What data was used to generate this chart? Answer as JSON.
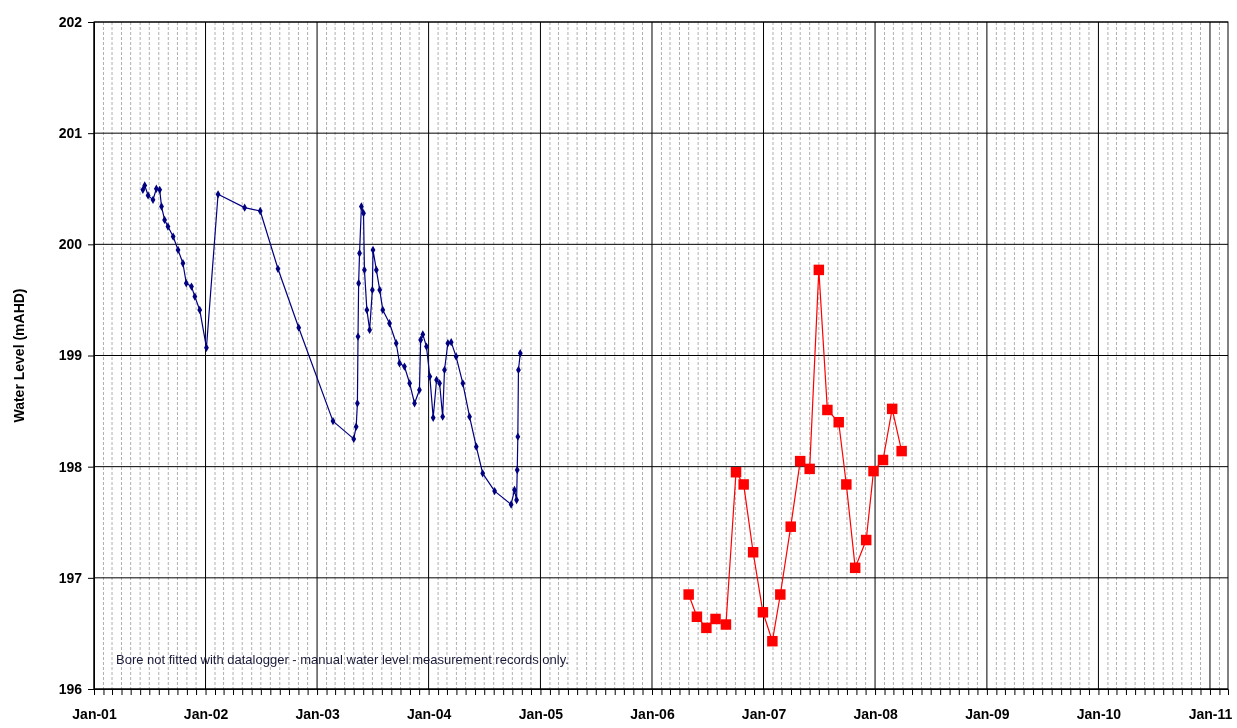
{
  "chart_data": {
    "type": "line",
    "ylabel": "Water Level (mAHD)",
    "xlim": [
      "2001-01-01",
      "2011-03-01"
    ],
    "ylim": [
      196,
      202
    ],
    "grid": true,
    "annotations": [
      "Bore not fitted with datalogger - manual water level measurement records only."
    ],
    "xticks": [
      {
        "value": "2001-01-01",
        "label": "Jan-01"
      },
      {
        "value": "2002-01-01",
        "label": "Jan-02"
      },
      {
        "value": "2003-01-01",
        "label": "Jan-03"
      },
      {
        "value": "2004-01-01",
        "label": "Jan-04"
      },
      {
        "value": "2005-01-01",
        "label": "Jan-05"
      },
      {
        "value": "2006-01-01",
        "label": "Jan-06"
      },
      {
        "value": "2007-01-01",
        "label": "Jan-07"
      },
      {
        "value": "2008-01-01",
        "label": "Jan-08"
      },
      {
        "value": "2009-01-01",
        "label": "Jan-09"
      },
      {
        "value": "2010-01-01",
        "label": "Jan-10"
      },
      {
        "value": "2011-01-01",
        "label": "Jan-11"
      },
      {
        "value": "2001-02-01",
        "label": null
      },
      {
        "value": "2001-03-01",
        "label": null
      },
      {
        "value": "2001-04-01",
        "label": null
      },
      {
        "value": "2001-05-01",
        "label": null
      },
      {
        "value": "2001-06-01",
        "label": null
      },
      {
        "value": "2001-07-01",
        "label": null
      },
      {
        "value": "2001-08-01",
        "label": null
      },
      {
        "value": "2001-09-01",
        "label": null
      },
      {
        "value": "2001-10-01",
        "label": null
      },
      {
        "value": "2001-11-01",
        "label": null
      },
      {
        "value": "2001-12-01",
        "label": null
      },
      {
        "value": "2002-02-01",
        "label": null
      },
      {
        "value": "2002-03-01",
        "label": null
      },
      {
        "value": "2002-04-01",
        "label": null
      },
      {
        "value": "2002-05-01",
        "label": null
      },
      {
        "value": "2002-06-01",
        "label": null
      },
      {
        "value": "2002-07-01",
        "label": null
      },
      {
        "value": "2002-08-01",
        "label": null
      },
      {
        "value": "2002-09-01",
        "label": null
      },
      {
        "value": "2002-10-01",
        "label": null
      },
      {
        "value": "2002-11-01",
        "label": null
      },
      {
        "value": "2002-12-01",
        "label": null
      },
      {
        "value": "2003-02-01",
        "label": null
      },
      {
        "value": "2003-03-01",
        "label": null
      },
      {
        "value": "2003-04-01",
        "label": null
      },
      {
        "value": "2003-05-01",
        "label": null
      },
      {
        "value": "2003-06-01",
        "label": null
      },
      {
        "value": "2003-07-01",
        "label": null
      },
      {
        "value": "2003-08-01",
        "label": null
      },
      {
        "value": "2003-09-01",
        "label": null
      },
      {
        "value": "2003-10-01",
        "label": null
      },
      {
        "value": "2003-11-01",
        "label": null
      },
      {
        "value": "2003-12-01",
        "label": null
      },
      {
        "value": "2004-02-01",
        "label": null
      },
      {
        "value": "2004-03-01",
        "label": null
      },
      {
        "value": "2004-04-01",
        "label": null
      },
      {
        "value": "2004-05-01",
        "label": null
      },
      {
        "value": "2004-06-01",
        "label": null
      },
      {
        "value": "2004-07-01",
        "label": null
      },
      {
        "value": "2004-08-01",
        "label": null
      },
      {
        "value": "2004-09-01",
        "label": null
      },
      {
        "value": "2004-10-01",
        "label": null
      },
      {
        "value": "2004-11-01",
        "label": null
      },
      {
        "value": "2004-12-01",
        "label": null
      },
      {
        "value": "2005-02-01",
        "label": null
      },
      {
        "value": "2005-03-01",
        "label": null
      },
      {
        "value": "2005-04-01",
        "label": null
      },
      {
        "value": "2005-05-01",
        "label": null
      },
      {
        "value": "2005-06-01",
        "label": null
      },
      {
        "value": "2005-07-01",
        "label": null
      },
      {
        "value": "2005-08-01",
        "label": null
      },
      {
        "value": "2005-09-01",
        "label": null
      },
      {
        "value": "2005-10-01",
        "label": null
      },
      {
        "value": "2005-11-01",
        "label": null
      },
      {
        "value": "2005-12-01",
        "label": null
      },
      {
        "value": "2006-02-01",
        "label": null
      },
      {
        "value": "2006-03-01",
        "label": null
      },
      {
        "value": "2006-04-01",
        "label": null
      },
      {
        "value": "2006-05-01",
        "label": null
      },
      {
        "value": "2006-06-01",
        "label": null
      },
      {
        "value": "2006-07-01",
        "label": null
      },
      {
        "value": "2006-08-01",
        "label": null
      },
      {
        "value": "2006-09-01",
        "label": null
      },
      {
        "value": "2006-10-01",
        "label": null
      },
      {
        "value": "2006-11-01",
        "label": null
      },
      {
        "value": "2006-12-01",
        "label": null
      },
      {
        "value": "2007-02-01",
        "label": null
      },
      {
        "value": "2007-03-01",
        "label": null
      },
      {
        "value": "2007-04-01",
        "label": null
      },
      {
        "value": "2007-05-01",
        "label": null
      },
      {
        "value": "2007-06-01",
        "label": null
      },
      {
        "value": "2007-07-01",
        "label": null
      },
      {
        "value": "2007-08-01",
        "label": null
      },
      {
        "value": "2007-09-01",
        "label": null
      },
      {
        "value": "2007-10-01",
        "label": null
      },
      {
        "value": "2007-11-01",
        "label": null
      },
      {
        "value": "2007-12-01",
        "label": null
      },
      {
        "value": "2008-02-01",
        "label": null
      },
      {
        "value": "2008-03-01",
        "label": null
      },
      {
        "value": "2008-04-01",
        "label": null
      },
      {
        "value": "2008-05-01",
        "label": null
      },
      {
        "value": "2008-06-01",
        "label": null
      },
      {
        "value": "2008-07-01",
        "label": null
      },
      {
        "value": "2008-08-01",
        "label": null
      },
      {
        "value": "2008-09-01",
        "label": null
      },
      {
        "value": "2008-10-01",
        "label": null
      },
      {
        "value": "2008-11-01",
        "label": null
      },
      {
        "value": "2008-12-01",
        "label": null
      },
      {
        "value": "2009-02-01",
        "label": null
      },
      {
        "value": "2009-03-01",
        "label": null
      },
      {
        "value": "2009-04-01",
        "label": null
      },
      {
        "value": "2009-05-01",
        "label": null
      },
      {
        "value": "2009-06-01",
        "label": null
      },
      {
        "value": "2009-07-01",
        "label": null
      },
      {
        "value": "2009-08-01",
        "label": null
      },
      {
        "value": "2009-09-01",
        "label": null
      },
      {
        "value": "2009-10-01",
        "label": null
      },
      {
        "value": "2009-11-01",
        "label": null
      },
      {
        "value": "2009-12-01",
        "label": null
      },
      {
        "value": "2010-02-01",
        "label": null
      },
      {
        "value": "2010-03-01",
        "label": null
      },
      {
        "value": "2010-04-01",
        "label": null
      },
      {
        "value": "2010-05-01",
        "label": null
      },
      {
        "value": "2010-06-01",
        "label": null
      },
      {
        "value": "2010-07-01",
        "label": null
      },
      {
        "value": "2010-08-01",
        "label": null
      },
      {
        "value": "2010-09-01",
        "label": null
      },
      {
        "value": "2010-10-01",
        "label": null
      },
      {
        "value": "2010-11-01",
        "label": null
      },
      {
        "value": "2010-12-01",
        "label": null
      },
      {
        "value": "2011-02-01",
        "label": null
      }
    ],
    "yticks": [
      196,
      197,
      198,
      199,
      200,
      201,
      202
    ],
    "series": [
      {
        "color": "#000080",
        "marker": "diamond",
        "x": [
          "2001-06-10",
          "2001-06-16",
          "2001-06-27",
          "2001-07-13",
          "2001-07-24",
          "2001-08-04",
          "2001-08-10",
          "2001-08-20",
          "2001-08-31",
          "2001-09-17",
          "2001-10-03",
          "2001-10-19",
          "2001-10-30",
          "2001-11-16",
          "2001-11-27",
          "2001-12-13",
          "2002-01-04",
          "2002-02-11",
          "2002-05-09",
          "2002-06-29",
          "2002-08-26",
          "2002-11-02",
          "2003-02-22",
          "2003-05-01",
          "2003-05-09",
          "2003-05-13",
          "2003-05-15",
          "2003-05-17",
          "2003-05-20",
          "2003-05-26",
          "2003-06-02",
          "2003-06-05",
          "2003-06-13",
          "2003-06-22",
          "2003-07-01",
          "2003-07-03",
          "2003-07-14",
          "2003-07-25",
          "2003-08-04",
          "2003-08-26",
          "2003-09-17",
          "2003-09-28",
          "2003-10-14",
          "2003-10-31",
          "2003-11-16",
          "2003-12-02",
          "2003-12-06",
          "2003-12-13",
          "2003-12-25",
          "2004-01-05",
          "2004-01-16",
          "2004-01-27",
          "2004-02-06",
          "2004-02-16",
          "2004-02-22",
          "2004-03-04",
          "2004-03-15",
          "2004-03-31",
          "2004-04-22",
          "2004-05-14",
          "2004-06-05",
          "2004-06-26",
          "2004-08-04",
          "2004-09-27",
          "2004-10-08",
          "2004-10-15",
          "2004-10-17",
          "2004-10-19",
          "2004-10-21",
          "2004-10-27"
        ],
        "values": [
          200.49,
          200.53,
          200.44,
          200.4,
          200.5,
          200.49,
          200.34,
          200.22,
          200.16,
          200.07,
          199.95,
          199.83,
          199.65,
          199.62,
          199.53,
          199.41,
          199.07,
          200.45,
          200.33,
          200.3,
          199.78,
          199.25,
          198.41,
          198.25,
          198.36,
          198.57,
          199.17,
          199.65,
          199.92,
          200.34,
          200.28,
          199.77,
          199.41,
          199.23,
          199.59,
          199.95,
          199.77,
          199.59,
          199.41,
          199.29,
          199.11,
          198.93,
          198.9,
          198.75,
          198.57,
          198.69,
          199.14,
          199.19,
          199.08,
          198.81,
          198.44,
          198.78,
          198.75,
          198.45,
          198.87,
          199.11,
          199.12,
          198.99,
          198.75,
          198.45,
          198.18,
          197.94,
          197.78,
          197.66,
          197.79,
          197.7,
          197.97,
          198.27,
          198.87,
          199.02
        ]
      },
      {
        "color": "#ff0000",
        "marker": "square",
        "x": [
          "2006-05-01",
          "2006-05-28",
          "2006-06-28",
          "2006-07-28",
          "2006-08-31",
          "2006-10-03",
          "2006-10-28",
          "2006-11-28",
          "2006-12-30",
          "2007-01-30",
          "2007-02-25",
          "2007-03-31",
          "2007-05-01",
          "2007-06-01",
          "2007-07-01",
          "2007-07-29",
          "2007-09-04",
          "2007-09-29",
          "2007-10-28",
          "2007-12-03",
          "2007-12-27",
          "2008-01-27",
          "2008-02-26",
          "2008-03-28"
        ],
        "values": [
          196.85,
          196.65,
          196.55,
          196.63,
          196.58,
          197.95,
          197.84,
          197.23,
          196.69,
          196.43,
          196.85,
          197.46,
          198.05,
          197.98,
          199.77,
          198.51,
          198.4,
          197.84,
          197.09,
          197.34,
          197.96,
          198.06,
          198.52,
          198.14
        ]
      }
    ]
  }
}
